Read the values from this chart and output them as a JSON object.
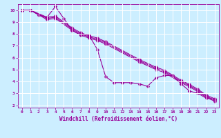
{
  "xlabel": "Windchill (Refroidissement éolien,°C)",
  "bg_color": "#cceeff",
  "line_color": "#990099",
  "grid_color": "#ffffff",
  "xlim": [
    -0.5,
    23.5
  ],
  "ylim": [
    1.8,
    10.5
  ],
  "yticks": [
    2,
    3,
    4,
    5,
    6,
    7,
    8,
    9,
    10
  ],
  "xticks": [
    0,
    1,
    2,
    3,
    4,
    5,
    6,
    7,
    8,
    9,
    10,
    11,
    12,
    13,
    14,
    15,
    16,
    17,
    18,
    19,
    20,
    21,
    22,
    23
  ],
  "line1_x": [
    0,
    1,
    2,
    3,
    4,
    5,
    6,
    7,
    8,
    9,
    10,
    11,
    12,
    13,
    14,
    15,
    16,
    17,
    18,
    19,
    20,
    21,
    22,
    23
  ],
  "line1_y": [
    10.0,
    10.0,
    9.6,
    9.4,
    10.3,
    9.3,
    8.3,
    7.9,
    7.9,
    6.7,
    4.4,
    3.9,
    3.9,
    3.9,
    3.8,
    3.6,
    4.3,
    4.5,
    4.5,
    3.8,
    3.2,
    3.0,
    2.6,
    2.5
  ],
  "line2_x": [
    0,
    1,
    3,
    4,
    6,
    7,
    8,
    9,
    10,
    14,
    16,
    17,
    19,
    20,
    21,
    22,
    23
  ],
  "line2_y": [
    10.0,
    10.0,
    9.4,
    9.5,
    8.5,
    8.1,
    7.85,
    7.65,
    7.35,
    5.85,
    5.2,
    4.95,
    4.1,
    3.75,
    3.35,
    2.85,
    2.55
  ],
  "line3_x": [
    0,
    1,
    3,
    4,
    6,
    7,
    8,
    9,
    10,
    14,
    16,
    17,
    19,
    20,
    21,
    22,
    23
  ],
  "line3_y": [
    10.0,
    10.0,
    9.3,
    9.4,
    8.4,
    8.0,
    7.75,
    7.55,
    7.25,
    5.75,
    5.1,
    4.85,
    4.0,
    3.65,
    3.25,
    2.75,
    2.45
  ],
  "line4_x": [
    0,
    1,
    3,
    4,
    6,
    7,
    8,
    9,
    10,
    14,
    16,
    17,
    19,
    20,
    21,
    22,
    23
  ],
  "line4_y": [
    10.0,
    10.0,
    9.2,
    9.3,
    8.3,
    7.9,
    7.65,
    7.45,
    7.15,
    5.65,
    5.0,
    4.75,
    3.9,
    3.55,
    3.15,
    2.65,
    2.35
  ],
  "markersize": 2.5,
  "linewidth": 0.8,
  "tick_fontsize": 4.5,
  "label_fontsize": 5.5
}
